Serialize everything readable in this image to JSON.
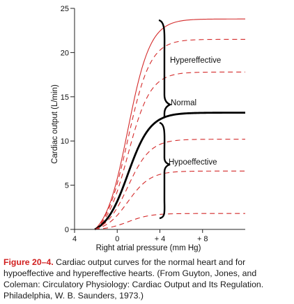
{
  "chart_data": {
    "type": "line",
    "xlabel": "Right atrial pressure (mm Hg)",
    "ylabel": "Cardiac output (L/min)",
    "xlim": [
      -4,
      12
    ],
    "ylim": [
      0,
      25
    ],
    "x_ticks": [
      {
        "value": -4,
        "label": "4"
      },
      {
        "value": 0,
        "label": "0"
      },
      {
        "value": 4,
        "label": "+ 4"
      },
      {
        "value": 8,
        "label": "+ 8"
      }
    ],
    "y_ticks": [
      {
        "value": 0,
        "label": "0"
      },
      {
        "value": 5,
        "label": "5"
      },
      {
        "value": 10,
        "label": "10"
      },
      {
        "value": 15,
        "label": "15"
      },
      {
        "value": 20,
        "label": "20"
      },
      {
        "value": 25,
        "label": "25"
      }
    ],
    "x_start": -2.1,
    "midpoint": 1.0,
    "steepness": 0.95,
    "series": [
      {
        "name": "",
        "plateau": 23.8,
        "color": "#d42a2a",
        "style": "solid"
      },
      {
        "name": "",
        "plateau": 21.5,
        "color": "#d42a2a",
        "style": "dashed"
      },
      {
        "name": "",
        "plateau": 17.8,
        "color": "#d42a2a",
        "style": "dashed"
      },
      {
        "name": "Normal",
        "plateau": 13.2,
        "color": "#000000",
        "style": "bold"
      },
      {
        "name": "",
        "plateau": 10.2,
        "color": "#d42a2a",
        "style": "dashed"
      },
      {
        "name": "",
        "plateau": 6.6,
        "color": "#d42a2a",
        "style": "dashed"
      },
      {
        "name": "",
        "plateau": 1.8,
        "color": "#d42a2a",
        "style": "dashed"
      }
    ],
    "annotations": [
      {
        "text": "Hypereffective"
      },
      {
        "text": "Normal"
      },
      {
        "text": "Hypoeffective"
      }
    ]
  },
  "caption": {
    "label": "Figure 20–4.",
    "text": " Cardiac output curves for the normal heart and for hypoeffective and hypereffective hearts. (From Guyton, Jones, and Coleman: Circulatory Physiology: Cardiac Output and Its Regulation. Philadelphia, W. B. Saunders, 1973.)"
  }
}
